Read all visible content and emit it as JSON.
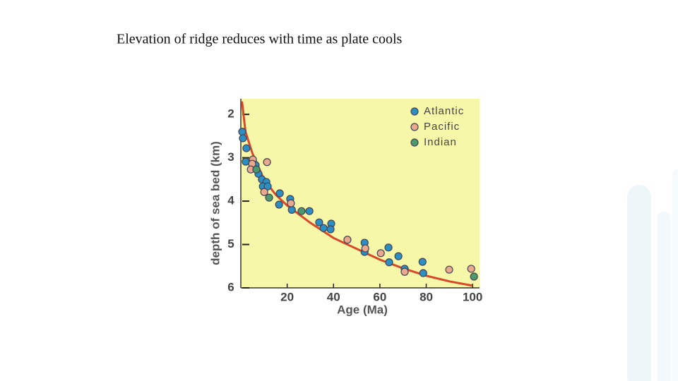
{
  "chart_data": {
    "type": "scatter",
    "title": "Elevation of ridge reduces with time as plate cools",
    "xlabel": "Age (Ma)",
    "ylabel": "depth of sea bed (km)",
    "xlim": [
      0,
      103
    ],
    "ylim": [
      1.64,
      6
    ],
    "y_inverted": true,
    "xticks": [
      20,
      40,
      60,
      80,
      100
    ],
    "yticks": [
      2,
      3,
      4,
      5,
      6
    ],
    "background": "#f7f7a9",
    "legend": "upper right",
    "series": [
      {
        "name": "Atlantic",
        "color": "#2b8fc4",
        "x": [
          0.6,
          0.9,
          2.4,
          2.1,
          5.2,
          6.4,
          7.6,
          9.1,
          11,
          9.5,
          11.6,
          16.8,
          21.3,
          16.5,
          22,
          29.6,
          33.8,
          35.7,
          39,
          38.7,
          53.4,
          53.4,
          63.7,
          64,
          68,
          70.7,
          78.4,
          78.7
        ],
        "values": [
          2.4,
          2.55,
          2.78,
          3.09,
          3.24,
          3.17,
          3.37,
          3.5,
          3.56,
          3.66,
          3.66,
          3.82,
          3.95,
          4.08,
          4.2,
          4.23,
          4.49,
          4.62,
          4.52,
          4.65,
          4.96,
          5.17,
          5.07,
          5.41,
          5.27,
          5.56,
          5.4,
          5.66
        ]
      },
      {
        "name": "Pacific",
        "color": "#e8a98e",
        "x": [
          5.2,
          4.9,
          4.3,
          11.3,
          10.1,
          21.6,
          46,
          53.7,
          60.4,
          70.7,
          89.9,
          99.4
        ],
        "values": [
          3.04,
          3.14,
          3.27,
          3.1,
          3.79,
          4.05,
          4.89,
          5.09,
          5.2,
          5.63,
          5.58,
          5.56
        ]
      },
      {
        "name": "Indian",
        "color": "#4c9a6c",
        "x": [
          6.7,
          12.2,
          26.2,
          100.6
        ],
        "values": [
          3.27,
          3.92,
          4.23,
          5.74
        ]
      }
    ],
    "curve": {
      "color": "#d9482b",
      "x": [
        0.5,
        2,
        5,
        10,
        15,
        20,
        30,
        40,
        50,
        60,
        70,
        80,
        90,
        100
      ],
      "values": [
        1.7,
        2.4,
        2.9,
        3.5,
        3.85,
        4.1,
        4.5,
        4.85,
        5.1,
        5.35,
        5.55,
        5.72,
        5.85,
        5.95
      ]
    }
  }
}
